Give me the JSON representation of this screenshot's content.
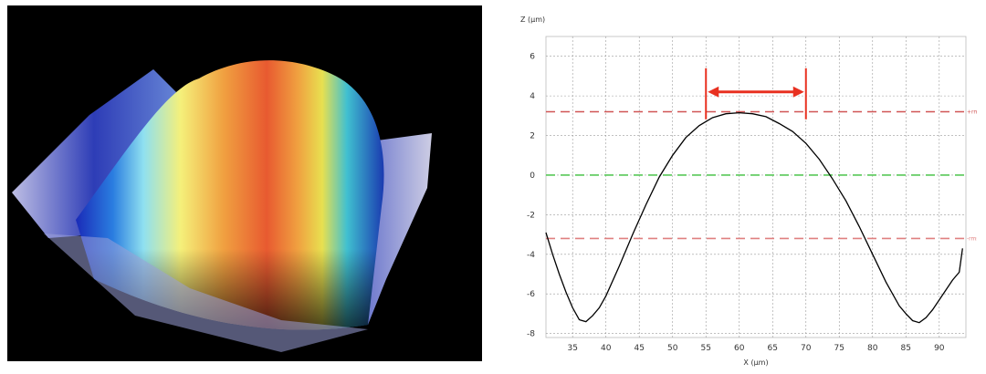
{
  "surface_render": {
    "colormap": [
      "#1a2bb8",
      "#2a7de0",
      "#8fe0f0",
      "#f5f07a",
      "#f0a040",
      "#e85a30"
    ]
  },
  "chart_data": {
    "type": "line",
    "xlabel": "X (µm)",
    "ylabel": "Z (µm)",
    "xlim": [
      31,
      94
    ],
    "ylim": [
      -8.2,
      7
    ],
    "xticks": [
      35,
      40,
      45,
      50,
      55,
      60,
      65,
      70,
      75,
      80,
      85,
      90
    ],
    "yticks": [
      -8,
      -6,
      -4,
      -2,
      0,
      2,
      4,
      6
    ],
    "grid": true,
    "series": [
      {
        "color": "#000000",
        "x": [
          31,
          32,
          33,
          34,
          35,
          36,
          37,
          38,
          39,
          40,
          42,
          44,
          46,
          48,
          50,
          52,
          54,
          56,
          58,
          60,
          62,
          64,
          66,
          68,
          70,
          72,
          74,
          76,
          78,
          80,
          82,
          84,
          85,
          86,
          87,
          88,
          89,
          90,
          91,
          92,
          93,
          93.5
        ],
        "y": [
          -2.9,
          -4.0,
          -5.0,
          -5.9,
          -6.7,
          -7.3,
          -7.4,
          -7.1,
          -6.7,
          -6.1,
          -4.6,
          -3.0,
          -1.5,
          -0.1,
          1.0,
          1.9,
          2.5,
          2.9,
          3.1,
          3.15,
          3.1,
          2.95,
          2.6,
          2.2,
          1.6,
          0.8,
          -0.2,
          -1.3,
          -2.6,
          -4.0,
          -5.4,
          -6.6,
          -7.0,
          -7.35,
          -7.45,
          -7.2,
          -6.8,
          -6.3,
          -5.8,
          -5.3,
          -4.9,
          -3.7
        ]
      }
    ],
    "reference_lines": [
      {
        "label": "+rms",
        "value": 3.2,
        "color": "#d05555"
      },
      {
        "label": "",
        "value": 0,
        "color": "#58c858"
      },
      {
        "label": "-rms",
        "value": -3.2,
        "color": "#e08080"
      }
    ],
    "annotation": {
      "type": "double-arrow",
      "x_start": 55,
      "x_end": 70,
      "y": 4.2,
      "color": "#e83020"
    }
  }
}
